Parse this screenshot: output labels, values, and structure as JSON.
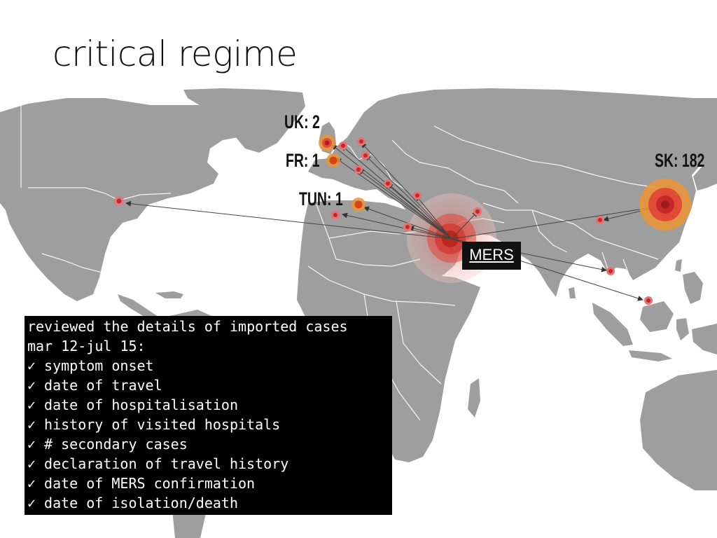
{
  "slide": {
    "title": "critical regime"
  },
  "map": {
    "land_color": "#9e9e9e",
    "source_label": "MERS",
    "country_labels": [
      {
        "code": "uk",
        "text": "UK: 2"
      },
      {
        "code": "fr",
        "text": "FR: 1"
      },
      {
        "code": "tun",
        "text": "TUN: 1"
      },
      {
        "code": "sk",
        "text": "SK: 182"
      }
    ],
    "marker_colors": {
      "case_core": "#d32f2f",
      "case_halo": "#e57373",
      "country_ring": "#e8953a",
      "source_glow": "#f4b9b5"
    }
  },
  "details": {
    "heading_line1": "reviewed the details of imported cases",
    "heading_line2": "mar 12-jul 15:",
    "check_symbol": "✓",
    "items": [
      "symptom onset",
      "date of travel",
      "date of hospitalisation",
      "history of visited hospitals",
      "# secondary cases",
      "declaration of travel history",
      "date of MERS confirmation",
      "date of isolation/death"
    ]
  }
}
